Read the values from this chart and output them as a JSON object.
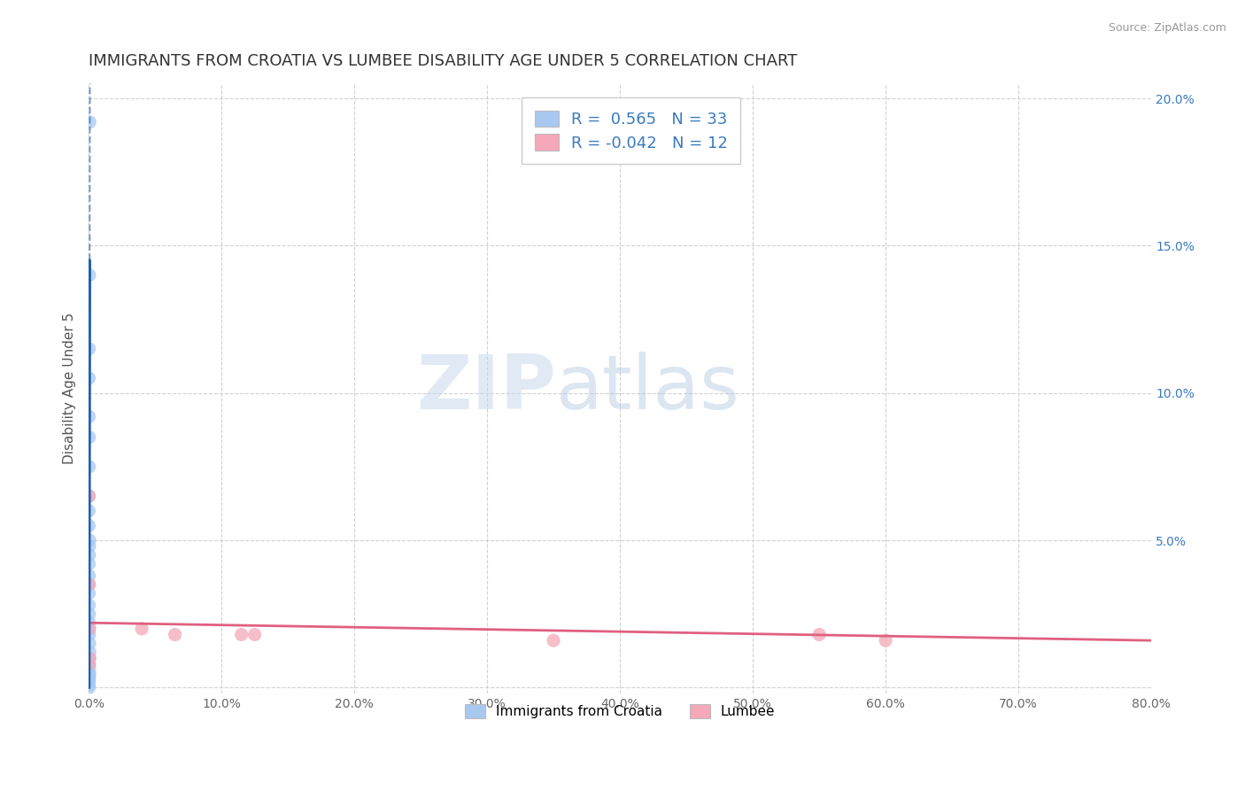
{
  "title": "IMMIGRANTS FROM CROATIA VS LUMBEE DISABILITY AGE UNDER 5 CORRELATION CHART",
  "source": "Source: ZipAtlas.com",
  "ylabel": "Disability Age Under 5",
  "xlim": [
    0.0,
    0.8
  ],
  "ylim": [
    -0.002,
    0.205
  ],
  "xticks": [
    0.0,
    0.1,
    0.2,
    0.3,
    0.4,
    0.5,
    0.6,
    0.7,
    0.8
  ],
  "xtick_labels": [
    "0.0%",
    "10.0%",
    "20.0%",
    "30.0%",
    "40.0%",
    "50.0%",
    "60.0%",
    "70.0%",
    "80.0%"
  ],
  "yticks_right": [
    0.0,
    0.05,
    0.1,
    0.15,
    0.2
  ],
  "ytick_labels_right": [
    "",
    "5.0%",
    "10.0%",
    "15.0%",
    "20.0%"
  ],
  "blue_scatter_x": [
    0.0008,
    0.0005,
    0.0003,
    0.0003,
    0.0003,
    0.0004,
    0.0004,
    0.0003,
    0.0002,
    0.0002,
    0.0006,
    0.0005,
    0.0004,
    0.0003,
    0.0003,
    0.0004,
    0.0003,
    0.0003,
    0.0004,
    0.0004,
    0.0005,
    0.0005,
    0.0006,
    0.0007,
    0.0008,
    0.0005,
    0.0006,
    0.0007,
    0.0005,
    0.0004,
    0.0003,
    0.0003,
    0.0003
  ],
  "blue_scatter_y": [
    0.192,
    0.14,
    0.115,
    0.105,
    0.092,
    0.085,
    0.075,
    0.065,
    0.06,
    0.055,
    0.05,
    0.048,
    0.045,
    0.042,
    0.038,
    0.035,
    0.032,
    0.028,
    0.025,
    0.022,
    0.02,
    0.018,
    0.015,
    0.012,
    0.01,
    0.008,
    0.007,
    0.005,
    0.004,
    0.003,
    0.002,
    0.001,
    0.0
  ],
  "pink_scatter_x": [
    0.0003,
    0.0004,
    0.0005,
    0.04,
    0.065,
    0.115,
    0.125,
    0.35,
    0.55,
    0.6,
    0.0003,
    0.0004
  ],
  "pink_scatter_y": [
    0.065,
    0.035,
    0.02,
    0.02,
    0.018,
    0.018,
    0.018,
    0.016,
    0.018,
    0.016,
    0.008,
    0.01
  ],
  "blue_color": "#a8c8f0",
  "pink_color": "#f4a8b8",
  "blue_line_color": "#2060b0",
  "pink_line_color": "#e06080",
  "blue_trend_x0": 0.00025,
  "blue_trend_y0": 0.0,
  "blue_trend_x1": 0.00075,
  "blue_trend_y1": 0.145,
  "pink_trend_y_at_0": 0.022,
  "pink_trend_y_at_08": 0.016,
  "r_blue": 0.565,
  "n_blue": 33,
  "r_pink": -0.042,
  "n_pink": 12,
  "legend_label_blue": "Immigrants from Croatia",
  "legend_label_pink": "Lumbee",
  "watermark_zip": "ZIP",
  "watermark_atlas": "atlas",
  "background_color": "#ffffff",
  "grid_color": "#cccccc",
  "title_fontsize": 13,
  "axis_label_fontsize": 11,
  "tick_fontsize": 10,
  "legend_r_color": "#3a7abf"
}
